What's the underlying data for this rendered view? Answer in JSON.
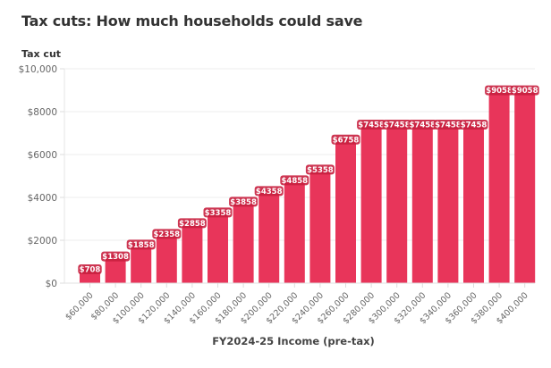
{
  "chart_data": {
    "type": "bar",
    "title": "Tax cuts: How much households could save",
    "ylabel": "Tax cut",
    "xlabel": "FY2024-25 Income (pre-tax)",
    "ylim": [
      0,
      10000
    ],
    "yticks": [
      0,
      2000,
      4000,
      6000,
      8000,
      10000
    ],
    "ytick_labels": [
      "$0",
      "$2000",
      "$4000",
      "$6000",
      "$8000",
      "$10,000"
    ],
    "grid": true,
    "bar_color": "#e8355a",
    "categories": [
      "$60,000",
      "$80,000",
      "$100,000",
      "$120,000",
      "$140,000",
      "$160,000",
      "$180,000",
      "$200,000",
      "$220,000",
      "$240,000",
      "$260,000",
      "$280,000",
      "$300,000",
      "$320,000",
      "$340,000",
      "$360,000",
      "$380,000",
      "$400,000"
    ],
    "values": [
      708,
      1308,
      1858,
      2358,
      2858,
      3358,
      3858,
      4358,
      4858,
      5358,
      6758,
      7458,
      7458,
      7458,
      7458,
      7458,
      9058,
      9058
    ],
    "data_labels": [
      "$708",
      "$1308",
      "$1858",
      "$2358",
      "$2858",
      "$3358",
      "$3858",
      "$4358",
      "$4858",
      "$5358",
      "$6758",
      "$7458",
      "$7458",
      "$7458",
      "$7458",
      "$7458",
      "$9058",
      "$9058"
    ]
  }
}
